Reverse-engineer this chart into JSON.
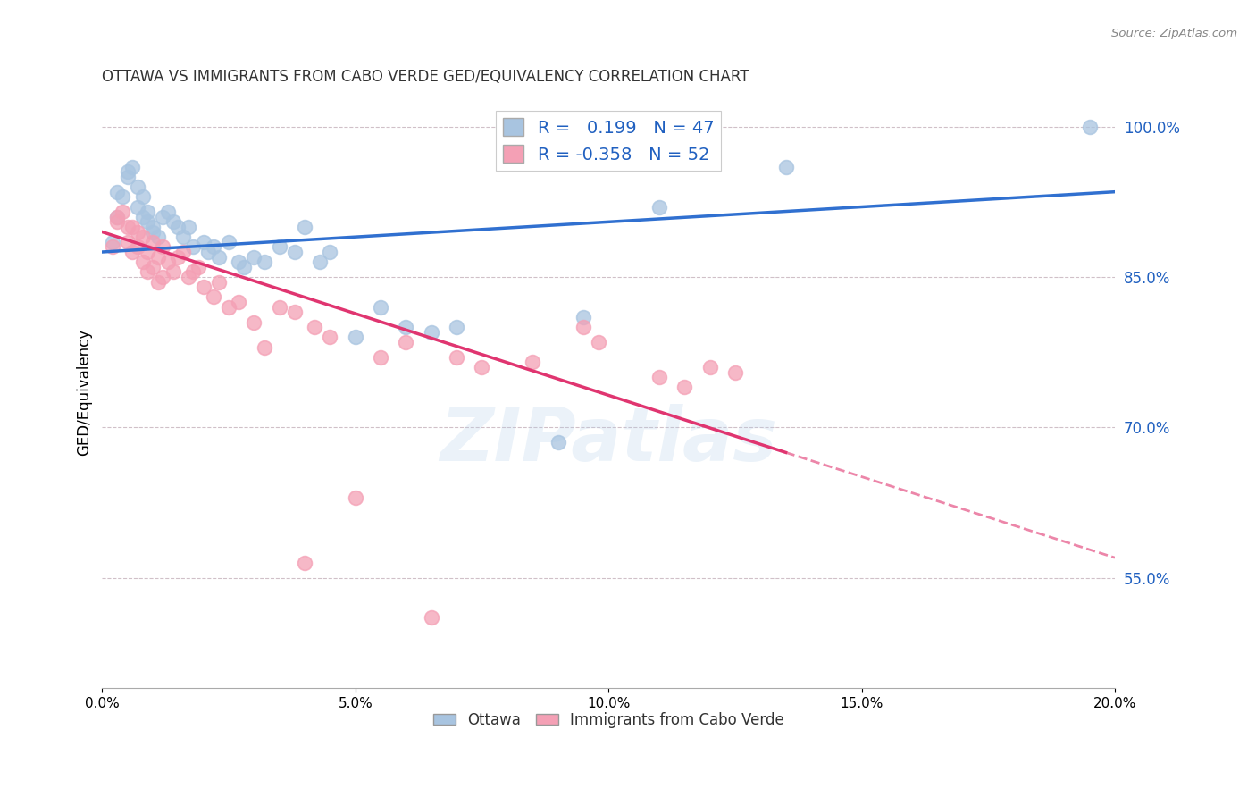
{
  "title": "OTTAWA VS IMMIGRANTS FROM CABO VERDE GED/EQUIVALENCY CORRELATION CHART",
  "source": "Source: ZipAtlas.com",
  "ylabel": "GED/Equivalency",
  "xlim": [
    0.0,
    20.0
  ],
  "ylim": [
    44.0,
    103.0
  ],
  "yticks": [
    55.0,
    70.0,
    85.0,
    100.0
  ],
  "xticks": [
    0.0,
    5.0,
    10.0,
    15.0,
    20.0
  ],
  "ottawa_R": 0.199,
  "ottawa_N": 47,
  "cabo_R": -0.358,
  "cabo_N": 52,
  "ottawa_color": "#a8c4e0",
  "cabo_color": "#f4a0b5",
  "ottawa_line_color": "#3070d0",
  "cabo_line_color": "#e03570",
  "watermark": "ZIPatlas",
  "ottawa_line_x0": 0.0,
  "ottawa_line_y0": 87.5,
  "ottawa_line_x1": 20.0,
  "ottawa_line_y1": 93.5,
  "cabo_line_x0": 0.0,
  "cabo_line_y0": 89.5,
  "cabo_line_x1_solid": 13.5,
  "cabo_line_y1_solid": 67.5,
  "cabo_line_x1_dash": 20.0,
  "cabo_line_y1_dash": 57.0,
  "ottawa_scatter_x": [
    0.2,
    0.3,
    0.3,
    0.4,
    0.5,
    0.5,
    0.6,
    0.7,
    0.7,
    0.8,
    0.8,
    0.9,
    0.9,
    1.0,
    1.0,
    1.1,
    1.2,
    1.3,
    1.4,
    1.5,
    1.6,
    1.7,
    1.8,
    2.0,
    2.1,
    2.2,
    2.3,
    2.5,
    2.7,
    2.8,
    3.0,
    3.2,
    3.5,
    3.8,
    4.0,
    4.3,
    4.5,
    5.0,
    5.5,
    6.0,
    6.5,
    7.0,
    9.0,
    9.5,
    11.0,
    13.5,
    19.5
  ],
  "ottawa_scatter_y": [
    88.5,
    91.0,
    93.5,
    93.0,
    95.0,
    95.5,
    96.0,
    92.0,
    94.0,
    91.0,
    93.0,
    91.5,
    90.5,
    90.0,
    89.5,
    89.0,
    91.0,
    91.5,
    90.5,
    90.0,
    89.0,
    90.0,
    88.0,
    88.5,
    87.5,
    88.0,
    87.0,
    88.5,
    86.5,
    86.0,
    87.0,
    86.5,
    88.0,
    87.5,
    90.0,
    86.5,
    87.5,
    79.0,
    82.0,
    80.0,
    79.5,
    80.0,
    68.5,
    81.0,
    92.0,
    96.0,
    100.0
  ],
  "cabo_scatter_x": [
    0.2,
    0.3,
    0.3,
    0.4,
    0.5,
    0.5,
    0.6,
    0.6,
    0.7,
    0.7,
    0.8,
    0.8,
    0.9,
    0.9,
    1.0,
    1.0,
    1.1,
    1.1,
    1.2,
    1.2,
    1.3,
    1.4,
    1.5,
    1.6,
    1.7,
    1.8,
    1.9,
    2.0,
    2.2,
    2.3,
    2.5,
    2.7,
    3.0,
    3.2,
    3.5,
    3.8,
    4.2,
    4.5,
    5.5,
    6.0,
    7.0,
    7.5,
    8.5,
    9.5,
    9.8,
    11.0,
    11.5,
    12.0,
    12.5,
    5.0,
    4.0,
    6.5
  ],
  "cabo_scatter_y": [
    88.0,
    90.5,
    91.0,
    91.5,
    90.0,
    88.5,
    90.0,
    87.5,
    89.5,
    88.0,
    89.0,
    86.5,
    87.5,
    85.5,
    88.5,
    86.0,
    87.0,
    84.5,
    88.0,
    85.0,
    86.5,
    85.5,
    87.0,
    87.5,
    85.0,
    85.5,
    86.0,
    84.0,
    83.0,
    84.5,
    82.0,
    82.5,
    80.5,
    78.0,
    82.0,
    81.5,
    80.0,
    79.0,
    77.0,
    78.5,
    77.0,
    76.0,
    76.5,
    80.0,
    78.5,
    75.0,
    74.0,
    76.0,
    75.5,
    63.0,
    56.5,
    51.0
  ]
}
